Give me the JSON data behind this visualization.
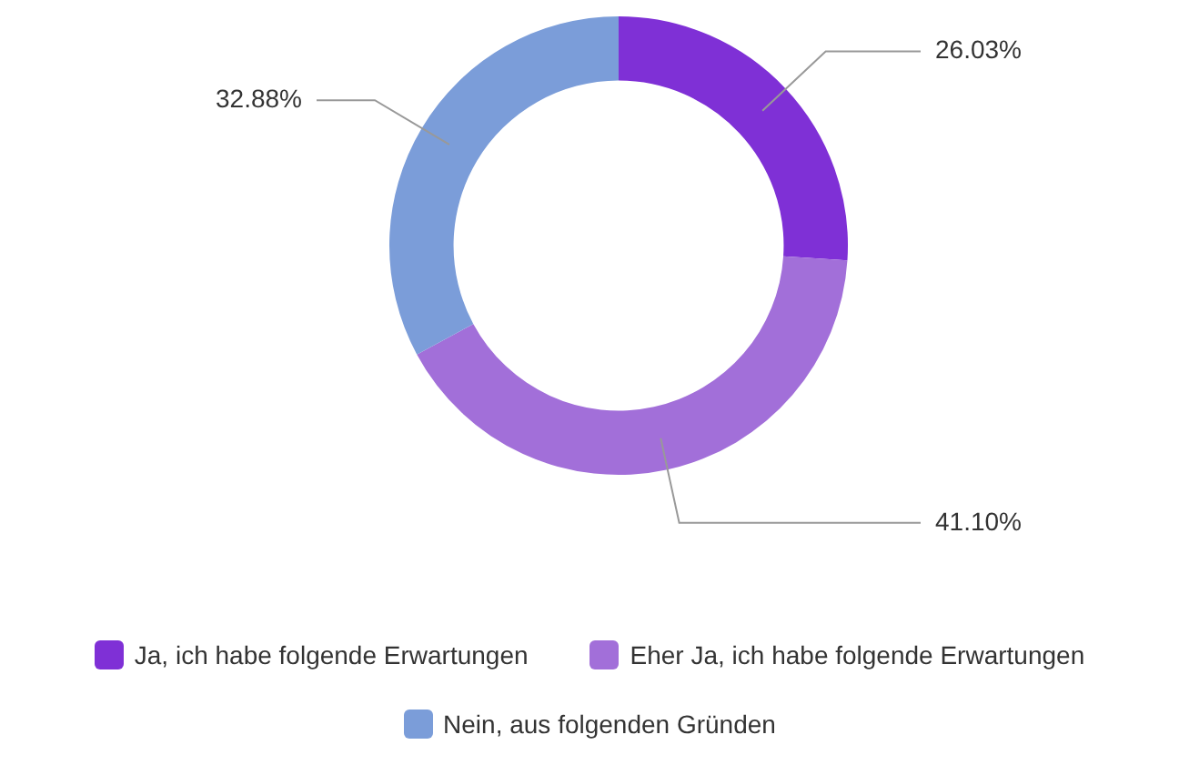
{
  "chart_data": {
    "type": "donut",
    "categories": [
      "Ja, ich habe folgende Erwartungen",
      "Eher Ja, ich habe folgende Erwartungen",
      "Nein, aus folgenden Gründen"
    ],
    "values": [
      26.03,
      41.1,
      32.88
    ],
    "value_labels": [
      "26.03%",
      "41.10%",
      "32.88%"
    ],
    "colors": [
      "#7f30d6",
      "#a26fd9",
      "#7b9dd9"
    ],
    "legend": "bottom"
  }
}
